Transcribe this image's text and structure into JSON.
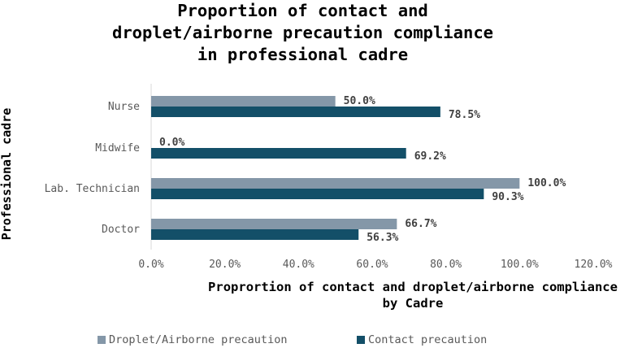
{
  "chart_data": {
    "type": "bar",
    "orientation": "horizontal",
    "title": "Proportion of contact and\ndroplet/airborne precaution compliance\nin professional cadre",
    "xlabel": "Proprortion of contact and droplet/airborne compliance\nby Cadre",
    "ylabel": "Professional cadre",
    "categories": [
      "Nurse",
      "Midwife",
      "Lab. Technician",
      "Doctor"
    ],
    "series": [
      {
        "name": "Droplet/Airborne precaution",
        "color": "#8497a8",
        "values": [
          50.0,
          0.0,
          100.0,
          66.7
        ],
        "labels": [
          "50.0%",
          "0.0%",
          "100.0%",
          "66.7%"
        ]
      },
      {
        "name": "Contact precaution",
        "color": "#134f68",
        "values": [
          78.5,
          69.2,
          90.3,
          56.3
        ],
        "labels": [
          "78.5%",
          "69.2%",
          "90.3%",
          "56.3%"
        ]
      }
    ],
    "xlim": [
      0,
      120
    ],
    "ticks": [
      "0.0%",
      "20.0%",
      "40.0%",
      "60.0%",
      "80.0%",
      "100.0%",
      "120.0%"
    ],
    "grid": false,
    "legend_position": "bottom"
  }
}
